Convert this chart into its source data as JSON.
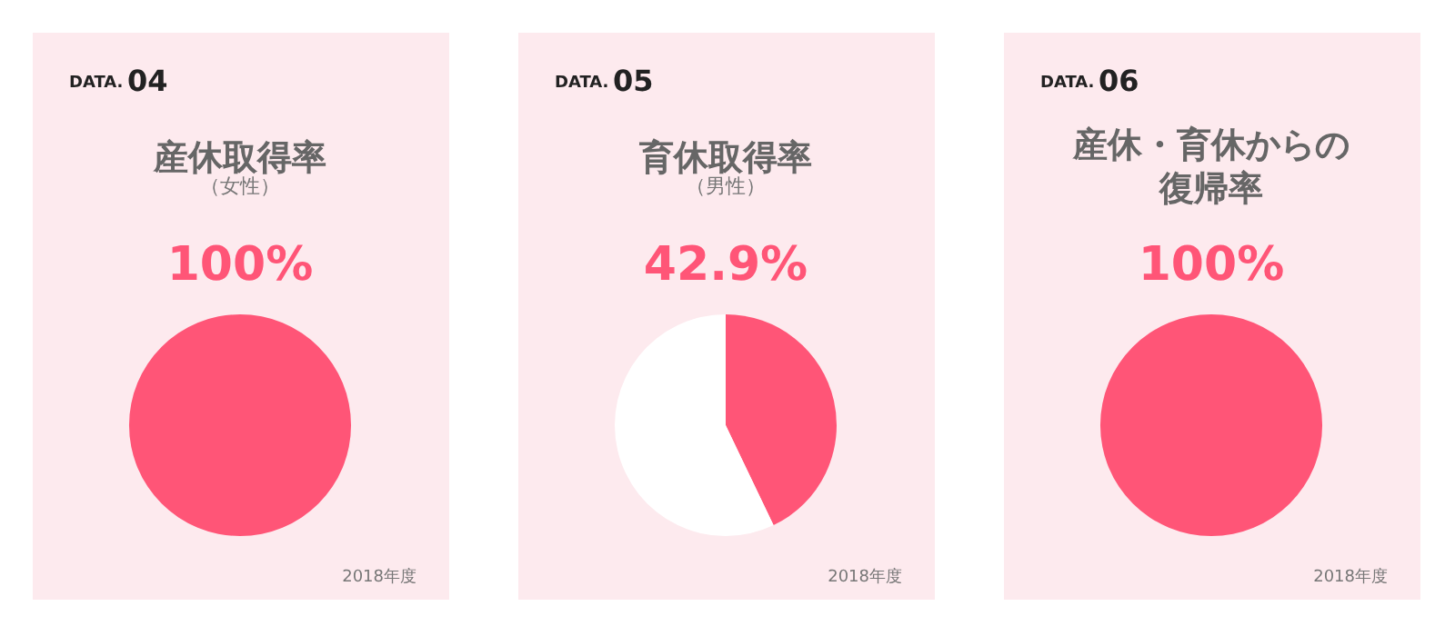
{
  "chart_data": [
    {
      "type": "pie",
      "title": "産休取得率",
      "subtitle": "（女性）",
      "categories": [
        null
      ],
      "values": [
        100
      ],
      "colors": [
        "#ff5577"
      ],
      "value_labels": [
        "100%"
      ],
      "annotations": [
        "DATA.",
        "04",
        "2018年度"
      ]
    },
    {
      "type": "pie",
      "title": "育休取得率",
      "subtitle": "（男性）",
      "categories": [
        null,
        null
      ],
      "values": [
        42.9,
        57.1
      ],
      "colors": [
        "#ff5577",
        "#ffffff"
      ],
      "value_labels": [
        "42.9%",
        null
      ],
      "annotations": [
        "DATA.",
        "05",
        "2018年度"
      ]
    },
    {
      "type": "pie",
      "title": "産休・育休からの復帰率",
      "categories": [
        null
      ],
      "values": [
        100
      ],
      "colors": [
        "#ff5577"
      ],
      "value_labels": [
        "100%"
      ],
      "annotations": [
        "DATA.",
        "06",
        "2018年度"
      ]
    }
  ]
}
